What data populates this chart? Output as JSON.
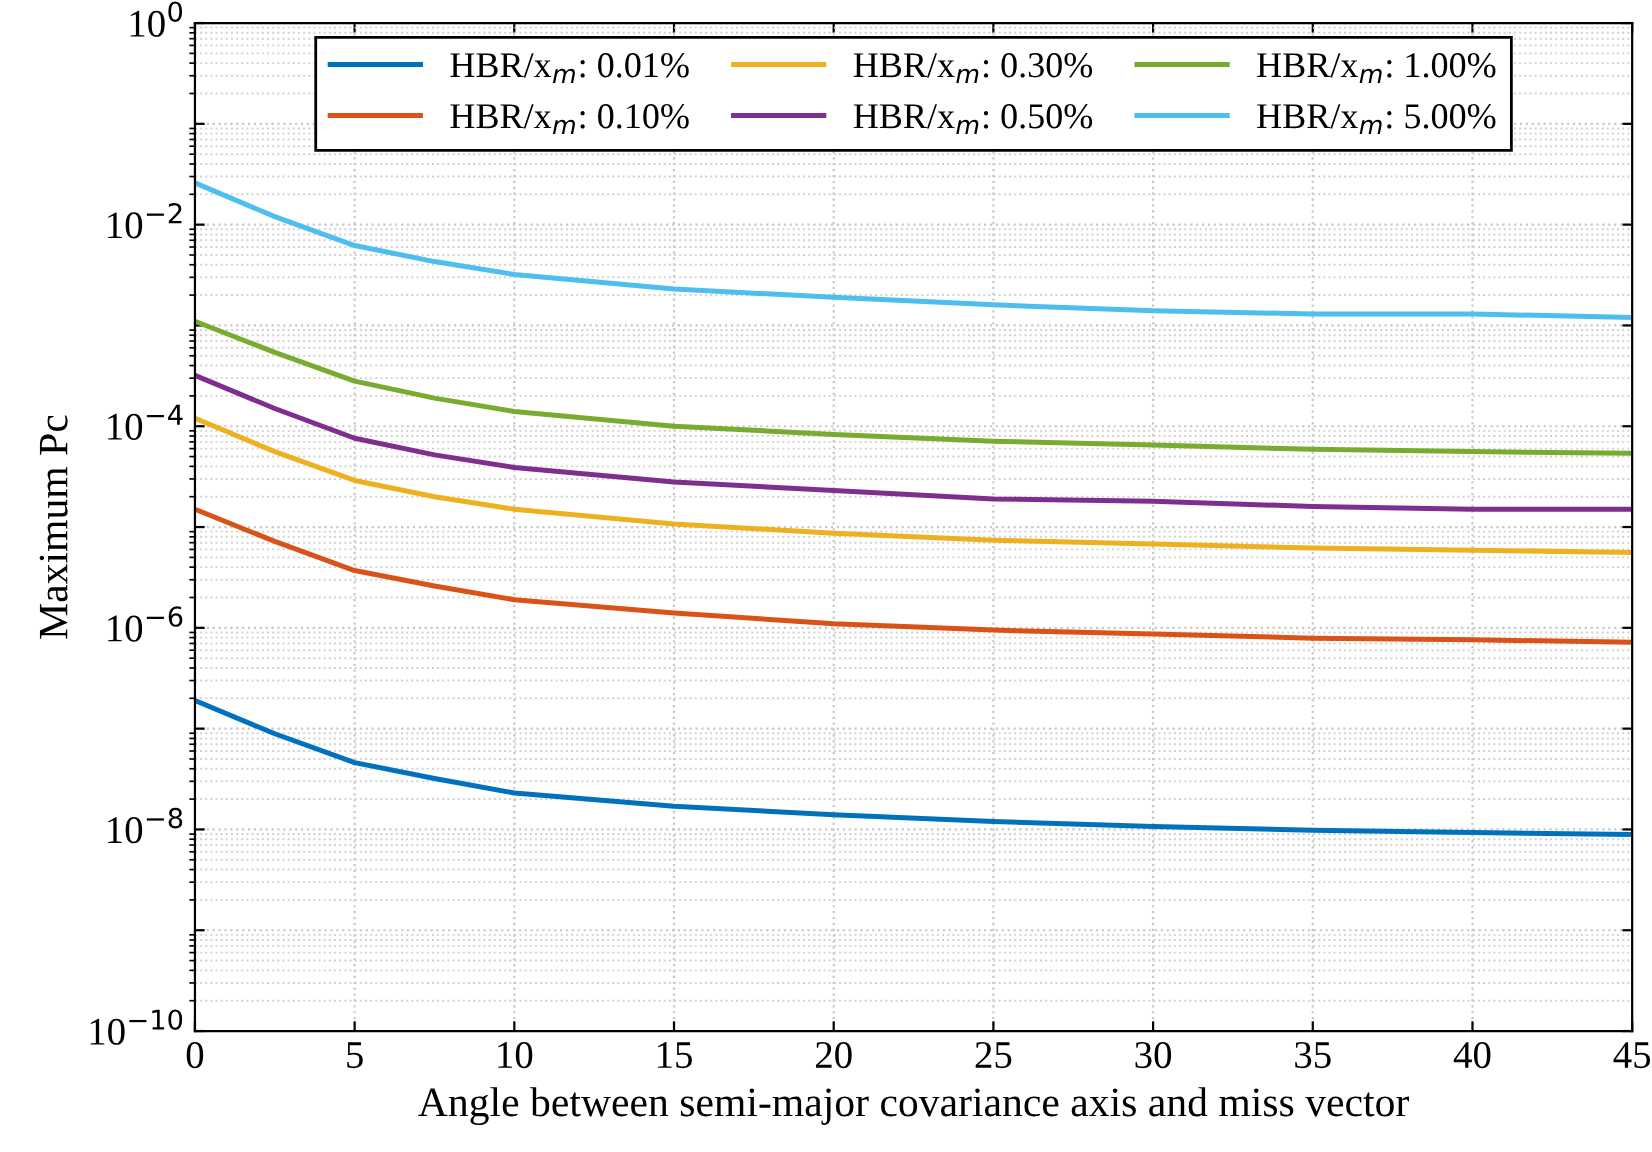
{
  "chart_data": {
    "type": "line",
    "xlabel": "Angle between semi-major covariance axis and miss vector",
    "ylabel": "Maximum Pc",
    "x": [
      0,
      2.5,
      5,
      7.5,
      10,
      15,
      20,
      25,
      30,
      35,
      40,
      45
    ],
    "xlim": [
      0,
      45
    ],
    "xticks": [
      0,
      5,
      10,
      15,
      20,
      25,
      30,
      35,
      40,
      45
    ],
    "ylim": [
      1e-10,
      1
    ],
    "log": true,
    "grid": true,
    "legend": "top",
    "line_style": "solid",
    "marker": "none",
    "yticks": [
      {
        "value": 1e-10,
        "label": "10$^{−10}$"
      },
      {
        "value": 1e-09,
        "label": null
      },
      {
        "value": 1e-08,
        "label": "10$^{−8}$"
      },
      {
        "value": 1e-07,
        "label": null
      },
      {
        "value": 1e-06,
        "label": "10$^{−6}$"
      },
      {
        "value": 1e-05,
        "label": null
      },
      {
        "value": 0.0001,
        "label": "10$^{−4}$"
      },
      {
        "value": 0.001,
        "label": null
      },
      {
        "value": 0.01,
        "label": "10$^{−2}$"
      },
      {
        "value": 0.1,
        "label": null
      },
      {
        "value": 1,
        "label": "10$^{0}$"
      }
    ],
    "series": [
      {
        "name": "HBR/x$_{m}$: 0.01%",
        "color": "#0072bd",
        "values": [
          1.9e-07,
          8.9e-08,
          4.6e-08,
          3.2e-08,
          2.3e-08,
          1.7e-08,
          1.4e-08,
          1.2e-08,
          1.07e-08,
          9.8e-09,
          9.3e-09,
          8.9e-09
        ]
      },
      {
        "name": "HBR/x$_{m}$: 0.10%",
        "color": "#d95319",
        "values": [
          1.5e-05,
          7.2e-06,
          3.7e-06,
          2.6e-06,
          1.9e-06,
          1.4e-06,
          1.1e-06,
          9.5e-07,
          8.7e-07,
          7.9e-07,
          7.6e-07,
          7.2e-07
        ]
      },
      {
        "name": "HBR/x$_{m}$: 0.30%",
        "color": "#edb120",
        "values": [
          0.00012,
          5.6e-05,
          2.9e-05,
          2e-05,
          1.5e-05,
          1.07e-05,
          8.7e-06,
          7.4e-06,
          6.8e-06,
          6.2e-06,
          5.9e-06,
          5.6e-06
        ]
      },
      {
        "name": "HBR/x$_{m}$: 0.50%",
        "color": "#7e2f8e",
        "values": [
          0.00032,
          0.00015,
          7.6e-05,
          5.2e-05,
          3.9e-05,
          2.8e-05,
          2.3e-05,
          1.9e-05,
          1.8e-05,
          1.6e-05,
          1.5e-05,
          1.5e-05
        ]
      },
      {
        "name": "HBR/x$_{m}$: 1.00%",
        "color": "#77ac30",
        "values": [
          0.0011,
          0.00054,
          0.00028,
          0.00019,
          0.00014,
          0.0001,
          8.3e-05,
          7.1e-05,
          6.5e-05,
          5.9e-05,
          5.6e-05,
          5.4e-05
        ]
      },
      {
        "name": "HBR/x$_{m}$: 5.00%",
        "color": "#4dbeee",
        "values": [
          0.026,
          0.012,
          0.0062,
          0.0043,
          0.0032,
          0.0023,
          0.0019,
          0.0016,
          0.0014,
          0.0013,
          0.0013,
          0.0012
        ]
      }
    ]
  }
}
